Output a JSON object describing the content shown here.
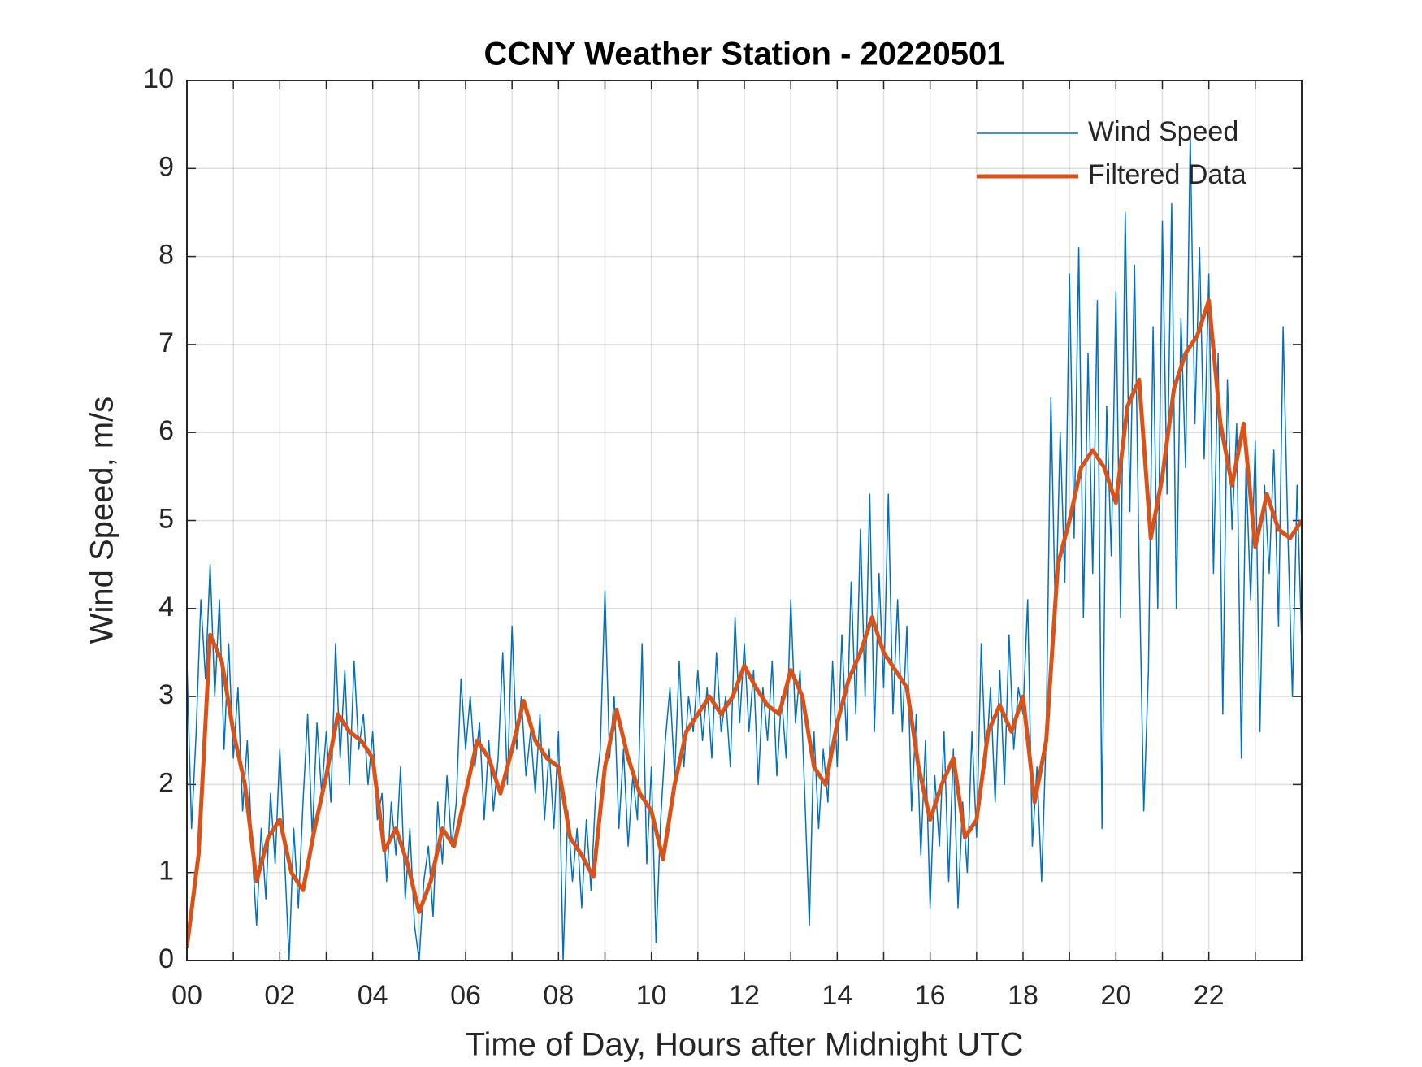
{
  "chart_data": {
    "type": "line",
    "title": "CCNY Weather Station - 20220501",
    "xlabel": "Time of Day, Hours after Midnight UTC",
    "ylabel": "Wind Speed, m/s",
    "xlim": [
      0,
      24
    ],
    "ylim": [
      0,
      10
    ],
    "xticks": [
      {
        "value": 0,
        "label": "00"
      },
      {
        "value": 2,
        "label": "02"
      },
      {
        "value": 4,
        "label": "04"
      },
      {
        "value": 6,
        "label": "06"
      },
      {
        "value": 8,
        "label": "08"
      },
      {
        "value": 10,
        "label": "10"
      },
      {
        "value": 12,
        "label": "12"
      },
      {
        "value": 14,
        "label": "14"
      },
      {
        "value": 16,
        "label": "16"
      },
      {
        "value": 18,
        "label": "18"
      },
      {
        "value": 20,
        "label": "20"
      },
      {
        "value": 22,
        "label": "22"
      }
    ],
    "xminorticks": [
      1,
      3,
      5,
      7,
      9,
      11,
      13,
      15,
      17,
      19,
      21,
      23
    ],
    "yticks": [
      0,
      1,
      2,
      3,
      4,
      5,
      6,
      7,
      8,
      9,
      10
    ],
    "grid": true,
    "legend": "upper right",
    "series": [
      {
        "name": "Wind Speed",
        "color": "#0072BD",
        "width": 1.5,
        "x": [
          0,
          0.1,
          0.2,
          0.3,
          0.4,
          0.5,
          0.6,
          0.7,
          0.8,
          0.9,
          1,
          1.1,
          1.2,
          1.3,
          1.4,
          1.5,
          1.6,
          1.7,
          1.8,
          1.9,
          2,
          2.1,
          2.2,
          2.3,
          2.4,
          2.5,
          2.6,
          2.7,
          2.8,
          2.9,
          3,
          3.1,
          3.2,
          3.3,
          3.4,
          3.5,
          3.6,
          3.7,
          3.8,
          3.9,
          4,
          4.1,
          4.2,
          4.3,
          4.4,
          4.5,
          4.6,
          4.7,
          4.8,
          4.9,
          5,
          5.1,
          5.2,
          5.3,
          5.4,
          5.5,
          5.6,
          5.7,
          5.8,
          5.9,
          6,
          6.1,
          6.2,
          6.3,
          6.4,
          6.5,
          6.6,
          6.7,
          6.8,
          6.9,
          7,
          7.1,
          7.2,
          7.3,
          7.4,
          7.5,
          7.6,
          7.7,
          7.8,
          7.9,
          8,
          8.1,
          8.2,
          8.3,
          8.4,
          8.5,
          8.6,
          8.7,
          8.8,
          8.9,
          9,
          9.1,
          9.2,
          9.3,
          9.4,
          9.5,
          9.6,
          9.7,
          9.8,
          9.9,
          10,
          10.1,
          10.2,
          10.3,
          10.4,
          10.5,
          10.6,
          10.7,
          10.8,
          10.9,
          11,
          11.1,
          11.2,
          11.3,
          11.4,
          11.5,
          11.6,
          11.7,
          11.8,
          11.9,
          12,
          12.1,
          12.2,
          12.3,
          12.4,
          12.5,
          12.6,
          12.7,
          12.8,
          12.9,
          13,
          13.1,
          13.2,
          13.3,
          13.4,
          13.5,
          13.6,
          13.7,
          13.8,
          13.9,
          14,
          14.1,
          14.2,
          14.3,
          14.4,
          14.5,
          14.6,
          14.7,
          14.8,
          14.9,
          15,
          15.1,
          15.2,
          15.3,
          15.4,
          15.5,
          15.6,
          15.7,
          15.8,
          15.9,
          16,
          16.1,
          16.2,
          16.3,
          16.4,
          16.5,
          16.6,
          16.7,
          16.8,
          16.9,
          17,
          17.1,
          17.2,
          17.3,
          17.4,
          17.5,
          17.6,
          17.7,
          17.8,
          17.9,
          18,
          18.1,
          18.2,
          18.3,
          18.4,
          18.5,
          18.6,
          18.7,
          18.8,
          18.9,
          19,
          19.1,
          19.2,
          19.3,
          19.4,
          19.5,
          19.6,
          19.7,
          19.8,
          19.9,
          20,
          20.1,
          20.2,
          20.3,
          20.4,
          20.5,
          20.6,
          20.7,
          20.8,
          20.9,
          21,
          21.1,
          21.2,
          21.3,
          21.4,
          21.5,
          21.6,
          21.7,
          21.8,
          21.9,
          22,
          22.1,
          22.2,
          22.3,
          22.4,
          22.5,
          22.6,
          22.7,
          22.8,
          22.9,
          23,
          23.1,
          23.2,
          23.3,
          23.4,
          23.5,
          23.6,
          23.7,
          23.8,
          23.9,
          24
        ],
        "values": [
          3.4,
          1.5,
          2.6,
          4.1,
          3.2,
          4.5,
          3.0,
          4.1,
          2.4,
          3.6,
          2.3,
          3.1,
          1.7,
          2.5,
          1.3,
          0.4,
          1.5,
          0.7,
          1.9,
          1.1,
          2.4,
          1.2,
          0.0,
          1.5,
          0.6,
          1.8,
          2.8,
          1.4,
          2.7,
          1.9,
          2.6,
          1.8,
          3.6,
          2.3,
          3.3,
          2.0,
          3.4,
          2.4,
          2.8,
          2.0,
          2.6,
          1.6,
          1.9,
          0.9,
          1.8,
          1.2,
          2.2,
          0.7,
          1.5,
          0.4,
          0.0,
          0.9,
          1.3,
          0.5,
          1.8,
          1.1,
          2.1,
          1.3,
          1.8,
          3.2,
          2.4,
          3.0,
          2.2,
          2.7,
          1.6,
          2.5,
          1.7,
          2.3,
          3.5,
          2.0,
          3.8,
          2.4,
          3.0,
          2.1,
          2.6,
          1.9,
          2.8,
          1.6,
          2.4,
          1.5,
          2.6,
          0.0,
          1.7,
          0.9,
          1.5,
          0.6,
          1.6,
          0.8,
          1.9,
          2.4,
          4.2,
          2.3,
          3.0,
          1.5,
          2.4,
          1.3,
          2.1,
          1.6,
          3.6,
          1.1,
          2.2,
          0.2,
          1.6,
          2.5,
          3.1,
          2.1,
          3.4,
          2.2,
          3.0,
          2.6,
          3.3,
          2.5,
          3.1,
          2.3,
          3.5,
          2.6,
          3.0,
          2.2,
          3.9,
          2.7,
          3.6,
          2.6,
          3.3,
          2.0,
          3.1,
          2.5,
          3.4,
          2.1,
          3.0,
          2.3,
          4.1,
          2.7,
          3.3,
          1.9,
          0.4,
          2.6,
          1.5,
          2.4,
          1.8,
          3.4,
          2.2,
          3.7,
          2.5,
          4.3,
          2.8,
          4.9,
          3.0,
          5.3,
          2.6,
          4.4,
          3.1,
          5.3,
          2.8,
          4.1,
          2.6,
          3.8,
          1.7,
          2.8,
          1.2,
          2.5,
          0.6,
          2.1,
          1.3,
          2.6,
          0.9,
          2.4,
          0.6,
          1.8,
          1.0,
          2.6,
          1.4,
          3.6,
          2.2,
          3.1,
          1.8,
          3.3,
          2.0,
          3.7,
          2.4,
          3.1,
          2.8,
          4.1,
          1.3,
          2.2,
          0.9,
          2.6,
          6.4,
          3.8,
          6.0,
          4.3,
          7.8,
          4.8,
          8.1,
          3.9,
          6.9,
          4.4,
          7.5,
          1.5,
          6.3,
          4.6,
          7.6,
          3.9,
          8.5,
          5.1,
          7.9,
          4.5,
          1.7,
          3.3,
          7.2,
          4.0,
          8.4,
          5.3,
          8.6,
          4.0,
          7.3,
          5.6,
          9.4,
          6.1,
          8.1,
          5.7,
          7.8,
          4.4,
          6.9,
          2.8,
          6.6,
          4.9,
          6.1,
          2.3,
          5.6,
          4.1,
          5.9,
          2.6,
          5.4,
          4.4,
          5.8,
          3.8,
          7.2,
          4.9,
          3.0,
          5.4,
          3.6
        ]
      },
      {
        "name": "Filtered Data",
        "color": "#D95319",
        "width": 5,
        "x": [
          0,
          0.25,
          0.5,
          0.75,
          1,
          1.25,
          1.5,
          1.75,
          2,
          2.25,
          2.5,
          2.75,
          3,
          3.25,
          3.5,
          3.75,
          4,
          4.25,
          4.5,
          4.75,
          5,
          5.25,
          5.5,
          5.75,
          6,
          6.25,
          6.5,
          6.75,
          7,
          7.25,
          7.5,
          7.75,
          8,
          8.25,
          8.5,
          8.75,
          9,
          9.25,
          9.5,
          9.75,
          10,
          10.25,
          10.5,
          10.75,
          11,
          11.25,
          11.5,
          11.75,
          12,
          12.25,
          12.5,
          12.75,
          13,
          13.25,
          13.5,
          13.75,
          14,
          14.25,
          14.5,
          14.75,
          15,
          15.25,
          15.5,
          15.75,
          16,
          16.25,
          16.5,
          16.75,
          17,
          17.25,
          17.5,
          17.75,
          18,
          18.25,
          18.5,
          18.75,
          19,
          19.25,
          19.5,
          19.75,
          20,
          20.25,
          20.5,
          20.75,
          21,
          21.25,
          21.5,
          21.75,
          22,
          22.25,
          22.5,
          22.75,
          23,
          23.25,
          23.5,
          23.75,
          24
        ],
        "values": [
          0.15,
          1.2,
          3.7,
          3.4,
          2.6,
          2.0,
          0.9,
          1.4,
          1.6,
          1.0,
          0.8,
          1.5,
          2.1,
          2.8,
          2.6,
          2.5,
          2.3,
          1.25,
          1.5,
          1.1,
          0.55,
          0.9,
          1.5,
          1.3,
          1.9,
          2.5,
          2.3,
          1.9,
          2.4,
          2.95,
          2.5,
          2.3,
          2.2,
          1.4,
          1.2,
          0.95,
          2.2,
          2.85,
          2.3,
          1.9,
          1.7,
          1.15,
          2.0,
          2.6,
          2.8,
          3.0,
          2.8,
          3.0,
          3.35,
          3.1,
          2.9,
          2.8,
          3.3,
          3.0,
          2.2,
          2.0,
          2.7,
          3.2,
          3.5,
          3.9,
          3.5,
          3.3,
          3.1,
          2.2,
          1.6,
          2.0,
          2.3,
          1.4,
          1.6,
          2.6,
          2.9,
          2.6,
          3.0,
          1.8,
          2.5,
          4.5,
          5.0,
          5.6,
          5.8,
          5.6,
          5.2,
          6.3,
          6.6,
          4.8,
          5.5,
          6.5,
          6.9,
          7.1,
          7.5,
          6.1,
          5.4,
          6.1,
          4.7,
          5.3,
          4.9,
          4.8,
          5.0
        ]
      }
    ]
  }
}
